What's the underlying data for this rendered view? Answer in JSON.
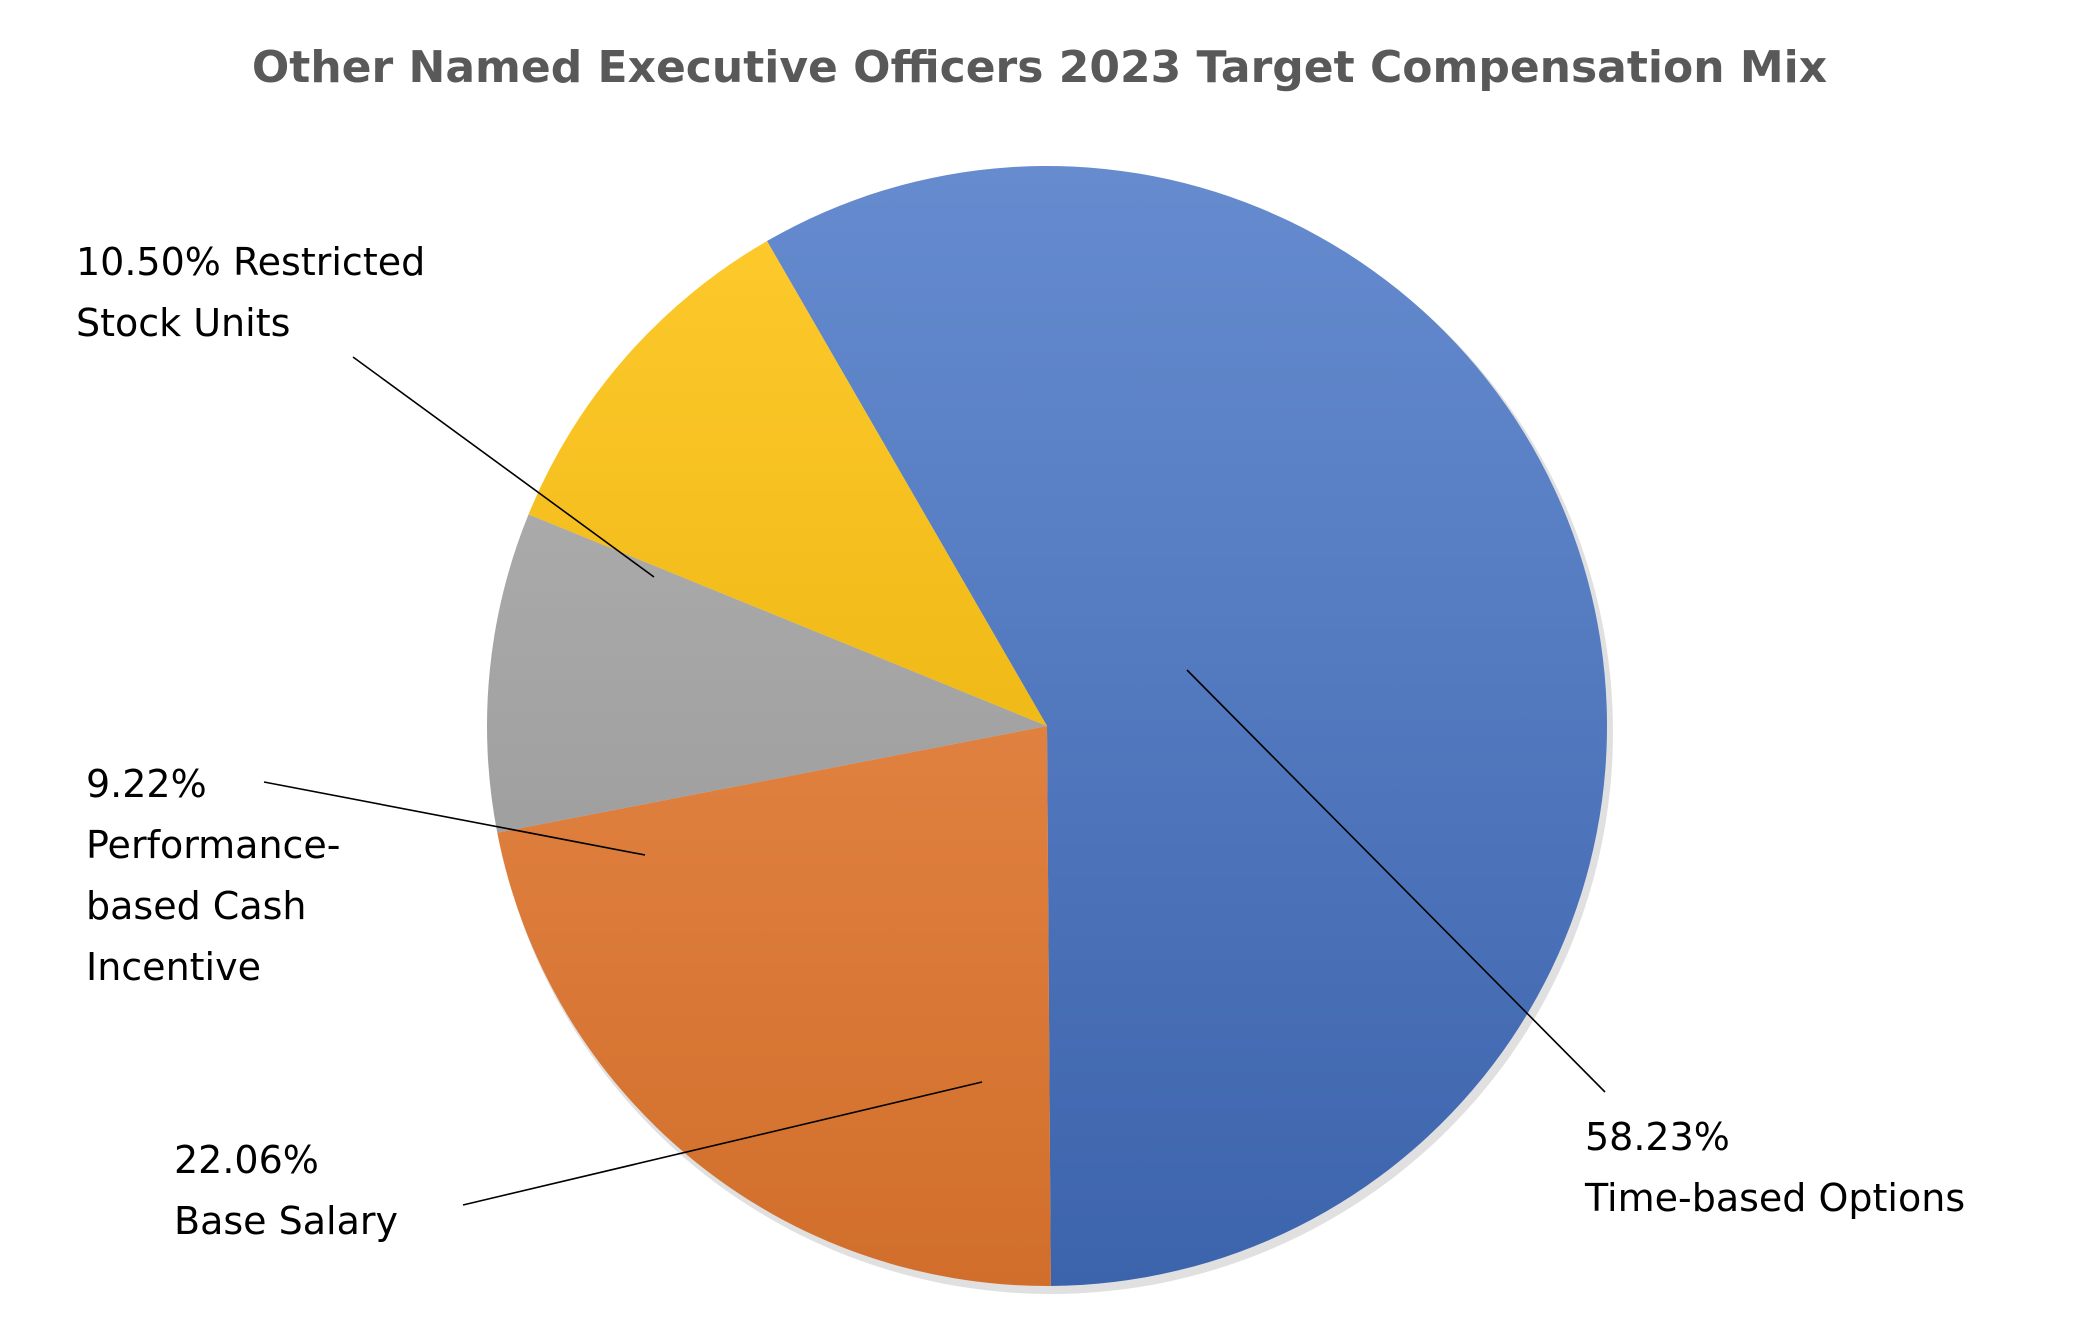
{
  "chart_data": {
    "type": "pie",
    "title": "Other Named Executive Officers 2023 Target Compensation Mix",
    "slices": [
      {
        "name": "Time-based Options",
        "value": 58.23,
        "label_lines": [
          "58.23%",
          "Time-based Options"
        ],
        "color": "#4472C4"
      },
      {
        "name": "Base Salary",
        "value": 22.06,
        "label_lines": [
          "22.06%",
          "Base Salary"
        ],
        "color": "#ED7D31"
      },
      {
        "name": "Performance-based Cash Incentive",
        "value": 9.22,
        "label_lines": [
          "9.22%",
          "Performance-",
          "based Cash",
          "Incentive"
        ],
        "color": "#A5A5A5"
      },
      {
        "name": "Restricted Stock Units",
        "value": 10.5,
        "label_lines": [
          "10.50% Restricted",
          "Stock Units"
        ],
        "color": "#FFC000"
      }
    ],
    "start_angle_deg": -30,
    "direction": "clockwise",
    "legend": "none",
    "data_labels": "outside-with-leader-lines"
  }
}
